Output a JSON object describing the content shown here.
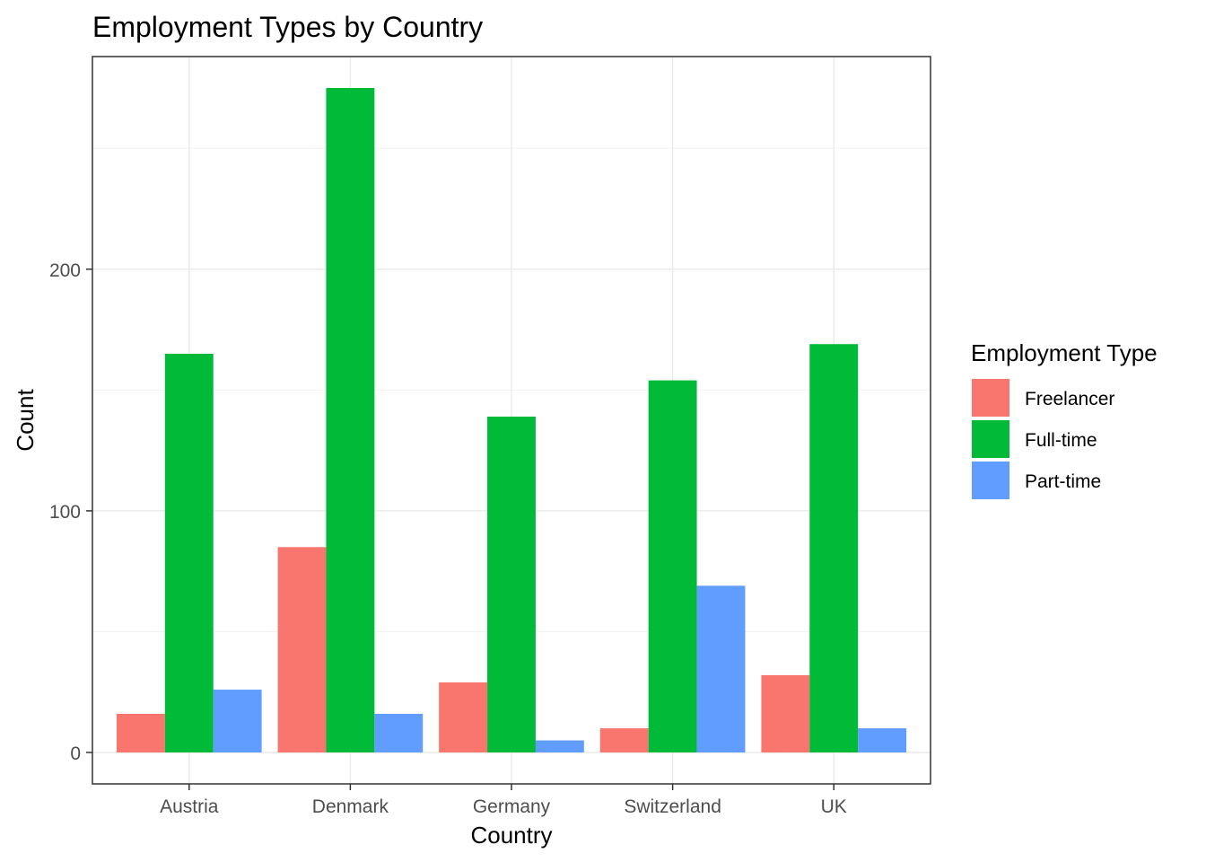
{
  "chart_data": {
    "type": "bar",
    "title": "Employment Types by Country",
    "xlabel": "Country",
    "ylabel": "Count",
    "categories": [
      "Austria",
      "Denmark",
      "Germany",
      "Switzerland",
      "UK"
    ],
    "series": [
      {
        "name": "Freelancer",
        "color": "#F8766D",
        "values": [
          16,
          85,
          29,
          10,
          32
        ]
      },
      {
        "name": "Full-time",
        "color": "#00BA38",
        "values": [
          165,
          275,
          139,
          154,
          169
        ]
      },
      {
        "name": "Part-time",
        "color": "#619CFF",
        "values": [
          26,
          16,
          5,
          69,
          10
        ]
      }
    ],
    "ylim": [
      -13,
      288
    ],
    "yticks": [
      0,
      100,
      200
    ],
    "ytick_labels": [
      "0",
      "100",
      "200"
    ],
    "grid": true,
    "legend": {
      "title": "Employment Type",
      "position": "right"
    }
  }
}
